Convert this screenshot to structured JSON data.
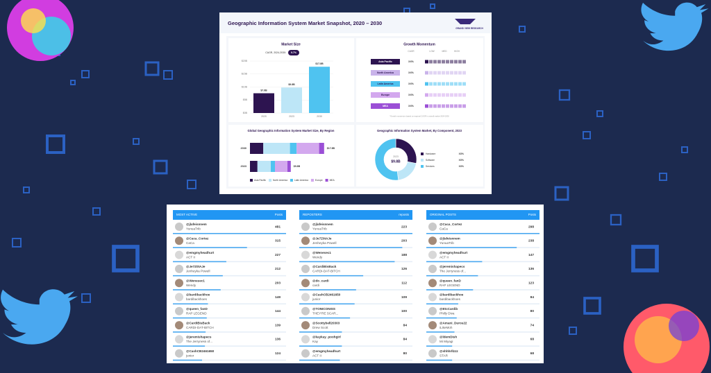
{
  "dashboard": {
    "title": "Geographic Information System Market Snapshot, 2020 – 2030",
    "logo": "GRAND VIEW RESEARCH",
    "market_size": {
      "title": "Market Size",
      "cagr_label": "CAGR, 2024-2030:",
      "cagr": "9.7%",
      "categories": [
        "2020",
        "2023",
        "2030"
      ],
      "values": [
        7.6,
        9.8,
        17.8
      ],
      "value_labels": [
        "$7.6B",
        "$9.8B",
        "$17.8B"
      ],
      "colors": [
        "#2d1450",
        "#bde6f7",
        "#4fc3f0"
      ],
      "ylim": [
        0,
        20
      ],
      "yticks": [
        {
          "value": 0,
          "label": "$0B"
        },
        {
          "value": 5,
          "label": "$5B"
        },
        {
          "value": 10,
          "label": "$10B"
        },
        {
          "value": 15,
          "label": "$15B"
        },
        {
          "value": 20,
          "label": "$20B"
        }
      ]
    },
    "growth": {
      "title": "Growth Momentum",
      "headers": [
        "CAGR",
        "LOW",
        "MED",
        "HIGH"
      ],
      "regions": [
        {
          "name": "Asia Pacific",
          "cagr": "XX%",
          "color": "#2d1450"
        },
        {
          "name": "North America",
          "cagr": "XX%",
          "color": "#c9b3ea"
        },
        {
          "name": "Latin America",
          "cagr": "XX%",
          "color": "#4fc3f0"
        },
        {
          "name": "Europe",
          "cagr": "XX%",
          "color": "#d3a8ee"
        },
        {
          "name": "MEA",
          "cagr": "XX%",
          "color": "#9b4fd6"
        }
      ],
      "note": "*Growth momentum based on regional CAGR in overall market 2024-2030"
    },
    "by_region": {
      "title": "Global Geographic Information System Market Size, By Region",
      "categories": [
        "2030",
        "2023"
      ],
      "totals": [
        "$17.8B",
        "$9.8B"
      ],
      "series": [
        {
          "name": "Asia Pacific",
          "color": "#2d1450",
          "values": [
            3.2,
            1.8
          ]
        },
        {
          "name": "North America",
          "color": "#bde6f7",
          "values": [
            6.4,
            3.2
          ]
        },
        {
          "name": "Latin America",
          "color": "#4fc3f0",
          "values": [
            1.6,
            1.0
          ]
        },
        {
          "name": "Europe",
          "color": "#d3a8ee",
          "values": [
            5.4,
            3.0
          ]
        },
        {
          "name": "MEA",
          "color": "#9b4fd6",
          "values": [
            1.2,
            0.8
          ]
        }
      ],
      "xlim": [
        0,
        20
      ]
    },
    "by_component": {
      "title": "Geographic Information System Market, By Component, 2023",
      "center_year": "2023",
      "center_value": "$9.8B",
      "categories": [
        "Hardware",
        "Software",
        "Services"
      ],
      "values": [
        28,
        20,
        52
      ],
      "value_labels": [
        "XX%",
        "XX%",
        "XX%"
      ],
      "colors": [
        "#2d1450",
        "#bde6f7",
        "#4fc3f0"
      ]
    }
  },
  "leaderboards": [
    {
      "title": "MOST ACTIVE",
      "count_label": "Posts",
      "rows": [
        {
          "handle": "@jlafeisnnem",
          "name": "YunuaTrib",
          "count": 481
        },
        {
          "handle": "@Caca_Cortez",
          "name": "CaCa",
          "count": 315
        },
        {
          "handle": "@emgmyheadhurt",
          "name": "ACT II",
          "count": 227
        },
        {
          "handle": "@Je7Z0tAJe",
          "name": "Jenheyka Powell",
          "count": 212
        },
        {
          "handle": "@Wenesec1",
          "name": "Wendy",
          "count": 203
        },
        {
          "handle": "@bardibackhoe",
          "name": "bardibackhoes",
          "count": 149
        },
        {
          "handle": "@queen_fanD",
          "name": "RAP LEGEND",
          "count": 144
        },
        {
          "handle": "@CardiBisBack",
          "name": "CARDI-DAT-BITCH",
          "count": 139
        },
        {
          "handle": "@jeremishapecs",
          "name": "The Jerryness of...",
          "count": 136
        },
        {
          "handle": "@CashCB2461650",
          "name": "junior",
          "count": 124
        }
      ]
    },
    {
      "title": "REPOSTERS",
      "count_label": "reposts",
      "rows": [
        {
          "handle": "@jlafeisnnem",
          "name": "YunuaTrib",
          "count": 223
        },
        {
          "handle": "@Je7Z0tAJe",
          "name": "Jenheyka Powell",
          "count": 203
        },
        {
          "handle": "@Wenesec1",
          "name": "Wendy",
          "count": 188
        },
        {
          "handle": "@CardiBisBack",
          "name": "CARDI-DAT-BITCH",
          "count": 126
        },
        {
          "handle": "@do_cardi",
          "name": "cardi",
          "count": 112
        },
        {
          "handle": "@CashCB2461650",
          "name": "junior",
          "count": 109
        },
        {
          "handle": "@TONICONISS",
          "name": "THEY'RE SCAR...",
          "count": 100
        },
        {
          "handle": "@Scottybell20303",
          "name": "Drew Scott",
          "count": 84
        },
        {
          "handle": "@kaykay_poohgirl",
          "name": "Kay",
          "count": 84
        },
        {
          "handle": "@emgmyheadhurt",
          "name": "ACT II",
          "count": 80
        }
      ]
    },
    {
      "title": "ORIGINAL POSTS",
      "count_label": "Posts",
      "rows": [
        {
          "handle": "@Caca_Cortez",
          "name": "CaCa",
          "count": 298
        },
        {
          "handle": "@jlafeisnnem",
          "name": "YunuaTrib",
          "count": 238
        },
        {
          "handle": "@emgmyheadhurt",
          "name": "ACT II",
          "count": 147
        },
        {
          "handle": "@jeremishapecs",
          "name": "The Jerryness of...",
          "count": 136
        },
        {
          "handle": "@queen_fanD",
          "name": "RAP LEGEND",
          "count": 123
        },
        {
          "handle": "@bardibackhoe",
          "name": "bardibackhoes",
          "count": 84
        },
        {
          "handle": "@EtcCardib",
          "name": "Philly Diva",
          "count": 80
        },
        {
          "handle": "@Amani_Duros22",
          "name": "iLikeMoh",
          "count": 74
        },
        {
          "handle": "@ldemDish",
          "name": "Mi Miyagi",
          "count": 68
        },
        {
          "handle": "@shhhrllzzz",
          "name": "STAR",
          "count": 68
        }
      ]
    }
  ]
}
